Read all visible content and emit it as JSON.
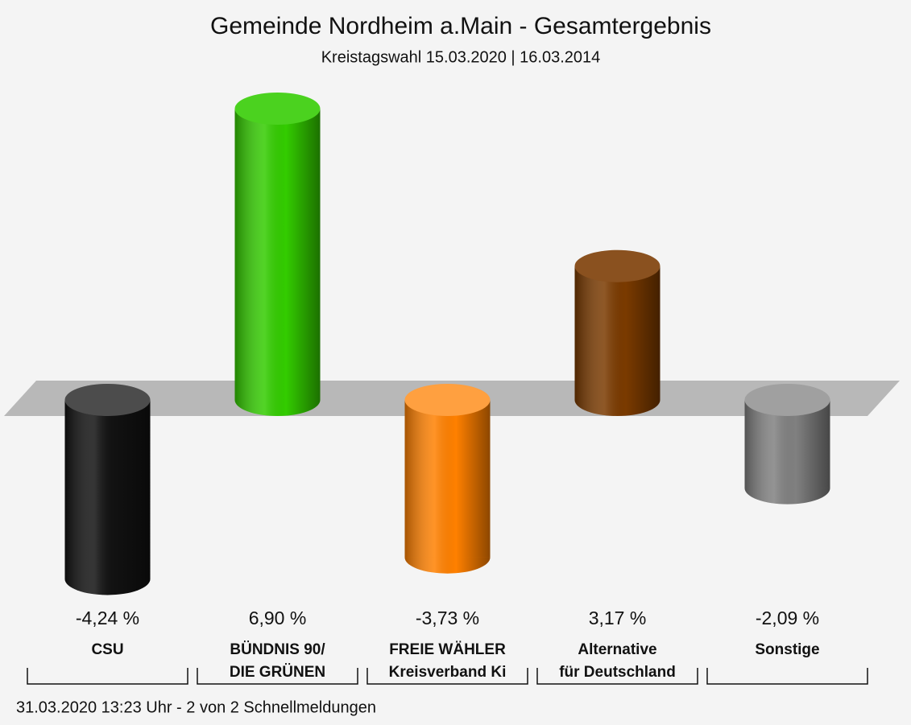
{
  "chart_data": {
    "type": "bar",
    "title": "Gemeinde Nordheim a.Main - Gesamtergebnis",
    "subtitle": "Kreistagswahl 15.03.2020  | 16.03.2014",
    "footer": "31.03.2020 13:23 Uhr - 2 von 2 Schnellmeldungen",
    "categories": [
      [
        "CSU"
      ],
      [
        "BÜNDNIS 90/",
        "DIE GRÜNEN"
      ],
      [
        "FREIE WÄHLER",
        "Kreisverband Ki"
      ],
      [
        "Alternative",
        "für Deutschland"
      ],
      [
        "Sonstige"
      ]
    ],
    "values": [
      -4.24,
      6.9,
      -3.73,
      3.17,
      -2.09
    ],
    "value_labels": [
      "-4,24 %",
      "6,90 %",
      "-3,73 %",
      "3,17 %",
      "-2,09 %"
    ],
    "colors": [
      "#111111",
      "#33cc00",
      "#ff8000",
      "#7a3a00",
      "#808080"
    ]
  }
}
